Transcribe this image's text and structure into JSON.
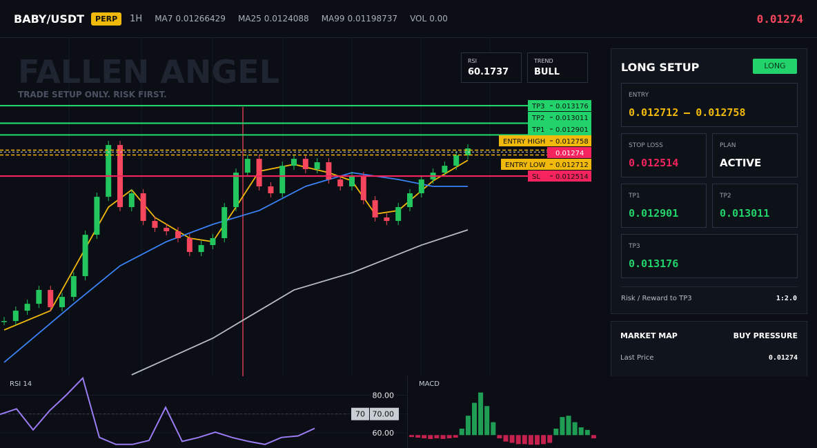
{
  "header": {
    "symbol": "BABY/USDT",
    "badge": "PERP",
    "interval": "1H",
    "indicators": [
      {
        "name": "MA7",
        "value": 0.01266429
      },
      {
        "name": "MA25",
        "value": 0.0124088
      },
      {
        "name": "MA99",
        "value": 0.01198737
      },
      {
        "name": "VOL",
        "value": 0,
        "value_label": "0.00"
      }
    ],
    "last_price": 0.01274
  },
  "watermark": {
    "title": "FALLEN ANGEL",
    "subtitle": "TRADE SETUP ONLY. RISK FIRST."
  },
  "stats": [
    {
      "label": "RSI",
      "value": 60.1737
    },
    {
      "label": "TREND",
      "value": "BULL"
    }
  ],
  "chart_data": [
    {
      "type": "candlestick",
      "values": [
        0.011151,
        0.011248,
        0.011313,
        0.011443,
        0.011281,
        0.011378,
        0.011573,
        0.011962,
        0.012319,
        0.012806,
        0.012222,
        0.012352,
        0.012092,
        0.012027,
        0.011995,
        0.01193,
        0.0118,
        0.011865,
        0.01193,
        0.012222,
        0.012546,
        0.012676,
        0.012417,
        0.012352,
        0.012611,
        0.012676,
        0.012579,
        0.012644,
        0.012482,
        0.012417,
        0.012514,
        0.012287,
        0.012125,
        0.012092,
        0.012222,
        0.012352,
        0.012482,
        0.012546,
        0.012611,
        0.012709,
        0.012774
      ],
      "up_color": "#22c55e",
      "down_color": "#f6465d",
      "series": [
        {
          "color": "#f0b90b",
          "x": [
            0,
            4,
            7,
            9,
            11,
            13,
            16,
            18,
            20,
            22,
            25,
            28,
            30,
            32,
            34,
            37,
            40
          ],
          "values": [
            0.011067,
            0.011248,
            0.011833,
            0.012222,
            0.012384,
            0.012125,
            0.01193,
            0.011897,
            0.012222,
            0.012559,
            0.012624,
            0.012546,
            0.012469,
            0.012157,
            0.01219,
            0.012469,
            0.012663
          ]
        },
        {
          "color": "#3b82f6",
          "x": [
            0,
            6,
            10,
            14,
            18,
            22,
            26,
            30,
            34,
            37,
            40
          ],
          "values": [
            0.010762,
            0.011313,
            0.01167,
            0.011897,
            0.01206,
            0.01219,
            0.012417,
            0.012546,
            0.012482,
            0.012417,
            0.012417
          ]
        },
        {
          "color": "#b8bcc4",
          "x": [
            11,
            18,
            21,
            25,
            30,
            36,
            40
          ],
          "values": [
            0.010645,
            0.010989,
            0.011184,
            0.011443,
            0.011605,
            0.011865,
            0.012008
          ]
        }
      ],
      "levels": [
        {
          "name": "TP3",
          "value": 0.013176,
          "color": "#22d36b"
        },
        {
          "name": "TP2",
          "value": 0.013011,
          "color": "#22d36b"
        },
        {
          "name": "TP1",
          "value": 0.012901,
          "color": "#22d36b"
        },
        {
          "name": "ENTRY HIGH",
          "value": 0.012758,
          "color": "#f0b90b",
          "dashed": true
        },
        {
          "name": "ENTRY LOW",
          "value": 0.012712,
          "color": "#f0b90b",
          "dashed": true
        },
        {
          "name": "SL",
          "value": 0.012514,
          "color": "#f6245e"
        }
      ],
      "last_price": 0.01274,
      "ylim": [
        0.010632,
        0.01378
      ]
    },
    {
      "type": "line",
      "title": "RSI 14",
      "color": "#9b7cf4",
      "values": [
        69.8,
        72.7,
        61.6,
        71.8,
        80.0,
        89.0,
        57.6,
        53.9,
        53.9,
        56,
        73.5,
        55.5,
        57.6,
        60.4,
        57.6,
        55.5,
        53.9,
        57.6,
        58.4,
        62.4
      ],
      "ylim": [
        52,
        90
      ],
      "yticks": [
        {
          "value": 80,
          "label": "80.00"
        },
        {
          "value": 70,
          "label": "70.00"
        },
        {
          "value": 60,
          "label": "60.00"
        }
      ],
      "level": 70
    },
    {
      "type": "bar",
      "title": "MACD",
      "up_color": "#1f9d55",
      "down_color": "#c4214f",
      "values": [
        -3,
        -4,
        -5,
        -6,
        -5,
        -6,
        -5,
        -4,
        10,
        30,
        50,
        66,
        45,
        20,
        -5,
        -10,
        -12,
        -14,
        -14,
        -15,
        -15,
        -14,
        -12,
        10,
        28,
        30,
        20,
        12,
        8,
        -5
      ],
      "ylim": [
        -20,
        72
      ]
    }
  ],
  "setup": {
    "title": "LONG SETUP",
    "badge": "LONG",
    "entry": {
      "label": "ENTRY",
      "low": 0.012712,
      "high": 0.012758
    },
    "stop_loss": {
      "label": "STOP LOSS",
      "value": 0.012514
    },
    "plan": {
      "label": "PLAN",
      "value": "ACTIVE"
    },
    "targets": [
      {
        "label": "TP1",
        "value": 0.012901
      },
      {
        "label": "TP2",
        "value": 0.013011
      },
      {
        "label": "TP3",
        "value": 0.013176
      }
    ],
    "risk_reward": {
      "label": "Risk / Reward to TP3",
      "value": "1:2.0"
    }
  },
  "market_map": {
    "title": "MARKET MAP",
    "signal": "BUY PRESSURE",
    "rows": [
      {
        "label": "Last Price",
        "value": 0.01274
      }
    ]
  }
}
